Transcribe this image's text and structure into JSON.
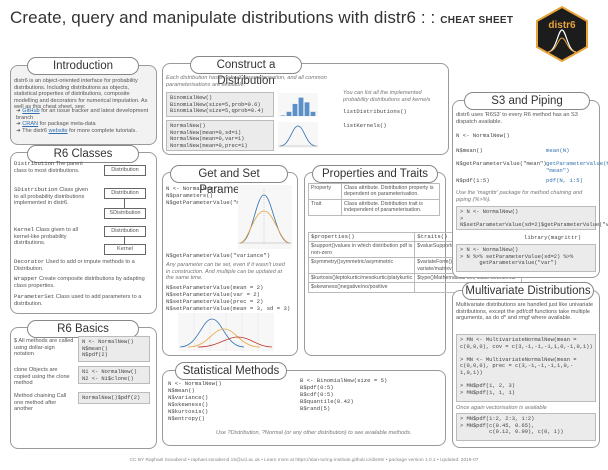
{
  "header": {
    "title": "Create, query and manipulate distributions with distr6 : :",
    "subtitle": "CHEAT SHEET",
    "logo_text": "distr6"
  },
  "intro": {
    "heading": "Introduction",
    "body": "distr6 is an object-oriented interface for probability distributions. Including distributions as objects, statistical properties of distributions, composite modelling and decorators for numerical imputation. As well as this cheat sheet, see:",
    "links": [
      {
        "link": "GitHub",
        "rest": " for an issue tracker and latest development branch"
      },
      {
        "link": "CRAN",
        "rest": " for package meta-data"
      },
      {
        "pre": "The distr6 ",
        "link": "website",
        "rest": " for more complete tutorials."
      }
    ]
  },
  "r6classes": {
    "heading": "R6 Classes",
    "rows": [
      {
        "key": "Distribution",
        "text": " The parent class to most distributions.",
        "box": "Distribution"
      },
      {
        "key": "SDistribution",
        "text": " Class given to all probability distributions implemented in distr6.",
        "box1": "Distribution",
        "box2": "SDistribution"
      },
      {
        "key": "Kernel",
        "text": " Class given to all kernel-like probability distributions.",
        "box1": "Distribution",
        "box2": "Kernel"
      }
    ],
    "more": [
      {
        "key": "Decorator",
        "text": " Used to add or impute methods to a Distribution."
      },
      {
        "key": "Wrapper",
        "text": " Create composite distributions by adapting class properties."
      },
      {
        "key": "ParameterSet",
        "text": " Class used to add parameters to a distribution."
      }
    ]
  },
  "r6basics": {
    "heading": "R6 Basics",
    "rows": [
      {
        "text": "$ All methods are called using dollar-sign notation",
        "code": "N <- NormalNew()\nN$mean()\nN$pdf(2)"
      },
      {
        "text": "clone Objects are copied using the clone method",
        "code": "N1 <- NormalNew()\nN2 <- N1$clone()"
      },
      {
        "text": "Method chaining Call one method after another",
        "code": "NormalNew()$pdf(2)"
      }
    ]
  },
  "construct": {
    "heading": "Construct a Distribution",
    "note": "Each distribution has a default parameterisation, and all common parameterisations are available.",
    "code1": "BinomialNew()\nBinomialNew(size=5,prob=0.6)\nBinomialNew(size=5,qprob=0.4)",
    "code2": "NormalNew()\nNormalNew(mean=0,sd=1)\nNormalNew(mean=0,var=1)\nNormalNew(mean=0,prec=1)",
    "list_note": "You can list all the implemented probability distributions and kernels",
    "list_code": "listDistributions()\n\nlistKernels()"
  },
  "getset": {
    "heading": "Get and Set Parameters",
    "code1": "N <- NormalNew()\nN$parameters()\nN$getParameterValue(\"mean\")",
    "code2": "N$getParameterValue(\"variance\")",
    "note": "Any parameter can be set, even if it wasn't used in construction. And multiple can be updated at the same time.",
    "code3": "N$setParameterValue(mean = 2)\nN$setParameterValue(var = 2)\nN$setParameterValue(prec = 2)\nN$setParameterValue(mean = 3, sd = 3)"
  },
  "props": {
    "heading": "Properties and Traits",
    "rows": [
      {
        "k": "Property",
        "v": "Class attribute. Distribution property is dependent on parameterisation."
      },
      {
        "k": "Trait",
        "v": "Class attribute. Distribution trait is independent of parameterisation."
      }
    ],
    "grid": [
      [
        "$properties()",
        "$traits()"
      ],
      [
        "$support()values in which distribution pdf is non-zero",
        "$valueSupport()discrete/continuous/mixture"
      ],
      [
        "$symmetry()symmetric/asymmetric",
        "$variateForm()univariate/multi-variate/matrixvariate"
      ],
      [
        "$kurtosis()leptokurtic/mesokurtic/platykurtic",
        "$type()Mathematical set, class SetInterval"
      ],
      [
        "$skewness()negative/no/positive",
        ""
      ]
    ]
  },
  "stats": {
    "heading": "Statistical Methods",
    "code1": "N <- NormalNew()\nN$mean()\nN$variance()\nN$skewness()\nN$kurtosis()\nN$entropy()",
    "code2": "B <- BinomialNew(size = 5)\nB$pdf(0:5)\nB$cdf(0:5)\nB$quantile(0.42)\nB$rand(5)",
    "note": "Use ?Distribution, ?Normal (or any other distribution) to see available methods."
  },
  "s3": {
    "heading": "S3 and Piping",
    "note": "distr6 uses 'R6S3' to every R6 method has an S3 dispatch available.",
    "code1": "N <- NormalNew()",
    "c2": "N$mean()",
    "r2": "mean(N)",
    "c3": "N$getParameterValue(\"mean\")",
    "r3": "getParameterValue(N, \"mean\")",
    "c4": "N$pdf(1:5)",
    "r4": "pdf(N, 1:5)",
    "pipe_note": "Use the 'magrittr' package for method chaining and piping (%>%).",
    "code5": "> N <- NormalNew()\n> N$setParameterValue(sd=2)$getParameterValue(\"var\")",
    "lib": "library(magrittr)",
    "code6": "> N <- NormalNew()\n> N %>% setParameterValue(sd=2) %>%\n      getParameterValue(\"var\")"
  },
  "multi": {
    "heading": "Multivariate Distributions",
    "note": "Multivariate distributions are handled just like univariate distributions, except the pdf/cdf functions take multiple arguments, as do d* and rmgf where available.",
    "code1": "> MN <- MultivariateNormalNew(mean =\nc(0,0,0), cov = c(3,-1,-1,-1,1,0,-1,0,1))\n\n> MN <- MultivariateNormalNew(mean =\nc(0,0,0), prec = c(3,-1,-1,-1,1,0,-\n1,0,1))\n\n> MN$pdf(1, 2, 3)\n> MN$pdf(1, 1, 1)",
    "vec_note": "Once again vectorisation is available",
    "code2": "> MN$pdf(1:2, 2:3, 1:2)\n> MN$pdf(c(0.45, 0.65),\n         c(0.12, 0.99), c(0, 1))"
  },
  "footer": "CC BY Raphael Sonabend • raphael.sonabend.15@ucl.ac.uk • Learn more at https://alan-turing-institute.github.io/distr6/ • package version 1.0.1 • Updated: 2019-07",
  "chart_data": [
    {
      "type": "bar",
      "title": "",
      "categories": [
        "0",
        "1",
        "2",
        "3",
        "4",
        "5"
      ],
      "values": [
        0.01,
        0.08,
        0.23,
        0.35,
        0.26,
        0.08
      ]
    },
    {
      "type": "line",
      "title": "",
      "curves": [
        "N(0,1)",
        "N(0,var=2)",
        "N(2,1)"
      ]
    }
  ]
}
